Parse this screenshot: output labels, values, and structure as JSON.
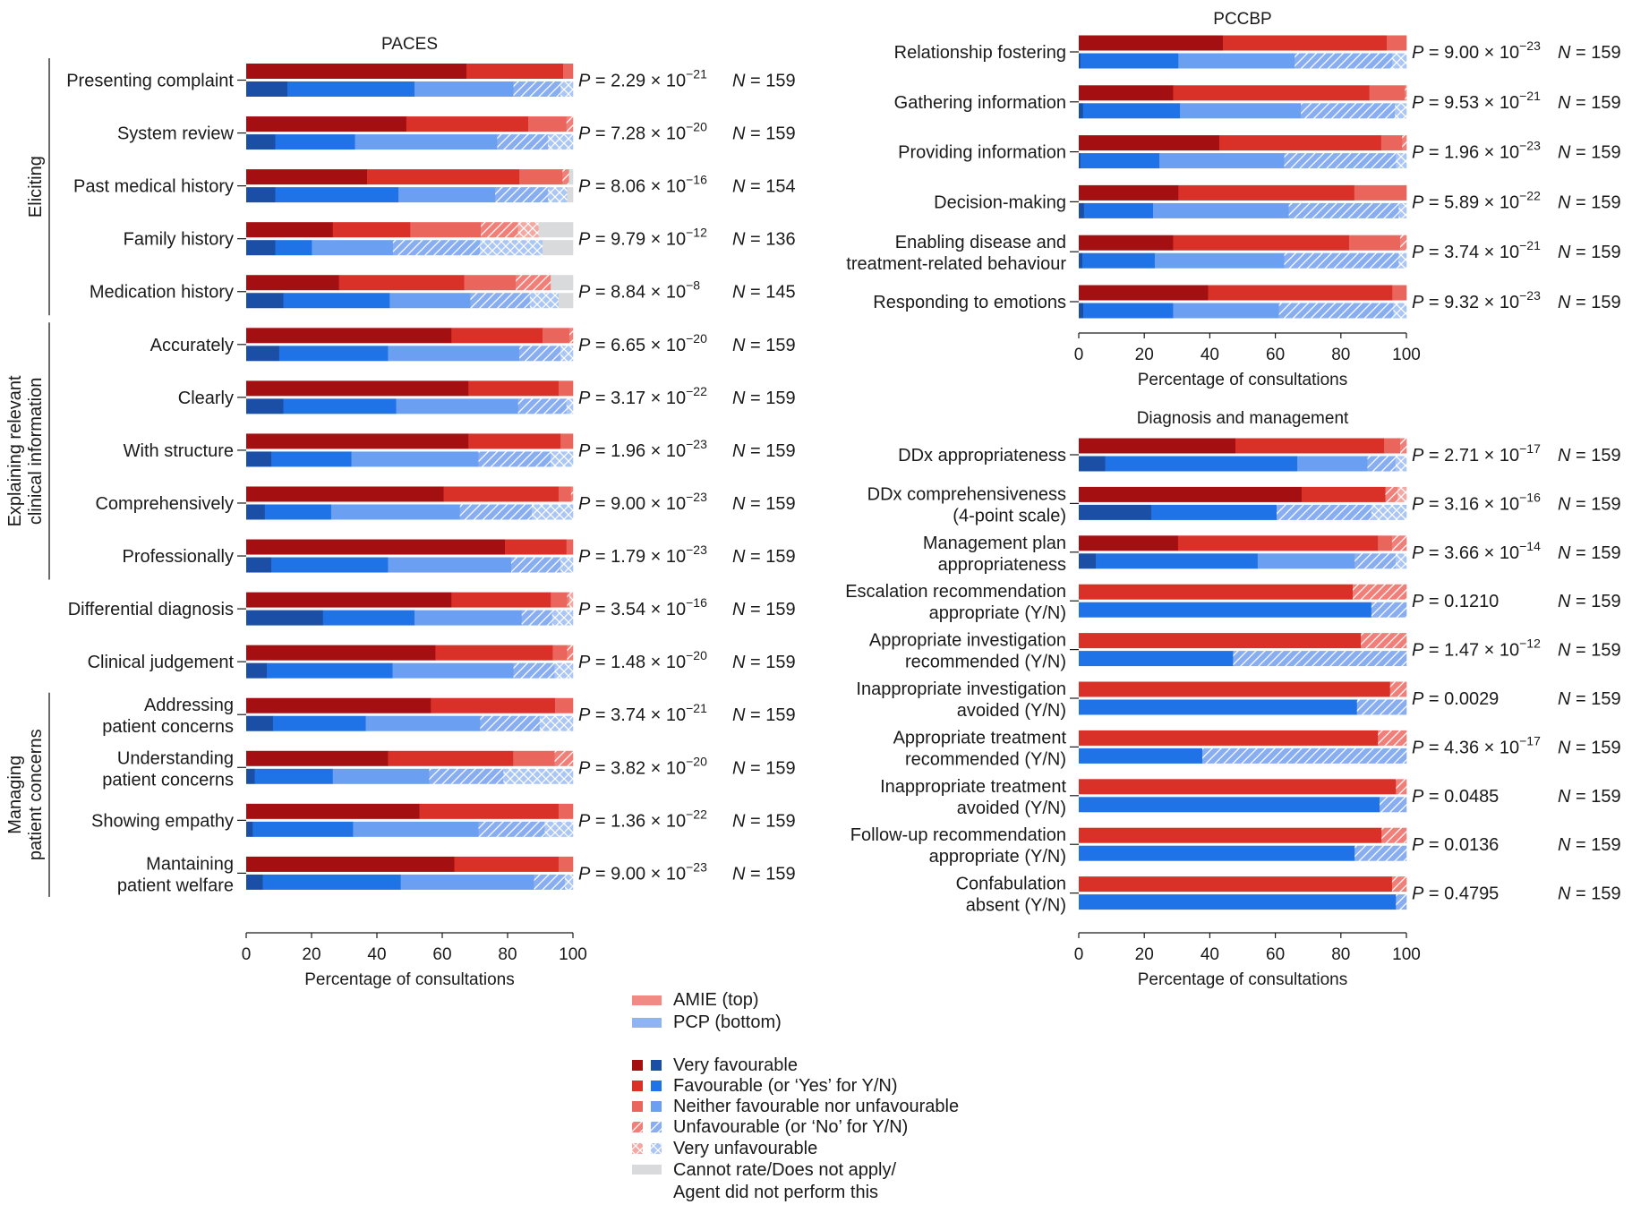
{
  "chart_data": {
    "type": "bar",
    "orientation": "horizontal-stacked",
    "legend": {
      "placement": "bottom-center",
      "groups": [
        {
          "label": "AMIE (top)",
          "color": "#f08a82"
        },
        {
          "label": "PCP (bottom)",
          "color": "#8fb4f2"
        }
      ],
      "categories": [
        {
          "key": "vf",
          "label": "Very favourable",
          "amie_color": "#a40f12",
          "pcp_color": "#1b4fa5",
          "pattern": "solid"
        },
        {
          "key": "f",
          "label": "Favourable (or ‘Yes’ for Y/N)",
          "amie_color": "#d93027",
          "pcp_color": "#1f73e6",
          "pattern": "solid"
        },
        {
          "key": "n",
          "label": "Neither favourable nor unfavourable",
          "amie_color": "#ea655c",
          "pcp_color": "#6a9ff2",
          "pattern": "solid"
        },
        {
          "key": "u",
          "label": "Unfavourable (or ‘No’ for Y/N)",
          "amie_color": "#ef8079",
          "pcp_color": "#88aef0",
          "pattern": "hatch"
        },
        {
          "key": "vu",
          "label": "Very unfavourable",
          "amie_color": "#f4a8a2",
          "pcp_color": "#aac6f5",
          "pattern": "crosshatch"
        },
        {
          "key": "cr",
          "label": "Cannot rate/Does not apply/",
          "label2": "Agent did not perform this",
          "amie_color": "#d9dadc",
          "pcp_color": "#d9dadc",
          "pattern": "solid"
        }
      ]
    },
    "xlabel": "Percentage of consultations",
    "xlim": [
      0,
      100
    ],
    "xticks": [
      "0",
      "20",
      "40",
      "60",
      "80",
      "100"
    ],
    "panels": [
      {
        "title": "PACES",
        "groups": [
          {
            "label": "Eliciting",
            "rows": [
              0,
              4
            ]
          },
          {
            "label": "Explaining relevant",
            "label2": "clinical information",
            "rows": [
              5,
              9
            ]
          },
          {
            "label": "Managing",
            "label2": "patient concerns",
            "rows": [
              12,
              15
            ]
          }
        ],
        "rows": [
          {
            "label": "Presenting complaint",
            "p": "2.29",
            "exp": "−21",
            "n": "159",
            "amie": [
              67.4,
              29.6,
              3.0,
              0,
              0,
              0
            ],
            "pcp": [
              12.6,
              38.9,
              30.3,
              14.4,
              3.8,
              0
            ]
          },
          {
            "label": "System review",
            "p": "7.28",
            "exp": "−20",
            "n": "159",
            "amie": [
              49.0,
              37.3,
              11.7,
              2.0,
              0,
              0
            ],
            "pcp": [
              8.9,
              24.4,
              43.5,
              15.5,
              7.7,
              0
            ]
          },
          {
            "label": "Past medical history",
            "p": "8.06",
            "exp": "−16",
            "n": "154",
            "amie": [
              37.0,
              46.6,
              13.2,
              2.0,
              0,
              1.2
            ],
            "pcp": [
              8.9,
              37.7,
              29.6,
              16.1,
              5.9,
              1.8
            ]
          },
          {
            "label": "Family history",
            "p": "9.79",
            "exp": "−12",
            "n": "136",
            "amie": [
              26.5,
              23.7,
              21.6,
              11.4,
              6.3,
              10.5
            ],
            "pcp": [
              8.9,
              11.2,
              24.8,
              26.6,
              19.2,
              9.3
            ]
          },
          {
            "label": "Medication history",
            "p": "8.84",
            "exp": "−8",
            "n": "145",
            "amie": [
              28.4,
              38.3,
              15.8,
              10.7,
              0,
              6.8
            ],
            "pcp": [
              11.4,
              32.5,
              24.7,
              18.2,
              8.8,
              4.4
            ]
          },
          {
            "label": "Accurately",
            "p": "6.65",
            "exp": "−20",
            "n": "159",
            "amie": [
              62.8,
              27.9,
              8.2,
              1.1,
              0,
              0
            ],
            "pcp": [
              10.1,
              33.3,
              40.2,
              12.6,
              3.8,
              0
            ]
          },
          {
            "label": "Clearly",
            "p": "3.17",
            "exp": "−22",
            "n": "159",
            "amie": [
              68.0,
              27.6,
              4.4,
              0,
              0,
              0
            ],
            "pcp": [
              11.4,
              34.5,
              37.3,
              14.8,
              2.0,
              0
            ]
          },
          {
            "label": "With structure",
            "p": "1.96",
            "exp": "−23",
            "n": "159",
            "amie": [
              68.0,
              28.2,
              3.8,
              0,
              0,
              0
            ],
            "pcp": [
              7.7,
              24.5,
              38.9,
              22.1,
              6.8,
              0
            ]
          },
          {
            "label": "Comprehensively",
            "p": "9.00",
            "exp": "−23",
            "n": "159",
            "amie": [
              60.4,
              35.2,
              3.8,
              0.6,
              0,
              0
            ],
            "pcp": [
              5.7,
              20.3,
              39.4,
              22.0,
              12.6,
              0
            ]
          },
          {
            "label": "Professionally",
            "p": "1.79",
            "exp": "−23",
            "n": "159",
            "amie": [
              79.2,
              18.8,
              2.0,
              0,
              0,
              0
            ],
            "pcp": [
              7.7,
              35.7,
              37.7,
              15.1,
              3.8,
              0
            ]
          },
          {
            "label": "Differential diagnosis",
            "p": "3.54",
            "exp": "−16",
            "n": "159",
            "amie": [
              62.8,
              30.4,
              5.0,
              0.7,
              1.1,
              0
            ],
            "pcp": [
              23.5,
              28.0,
              32.8,
              9.3,
              6.4,
              0
            ]
          },
          {
            "label": "Clinical judgement",
            "p": "1.48",
            "exp": "−20",
            "n": "159",
            "amie": [
              57.9,
              35.9,
              4.4,
              1.8,
              0,
              0
            ],
            "pcp": [
              6.3,
              38.5,
              37.0,
              12.6,
              5.6,
              0
            ]
          },
          {
            "label": "Addressing",
            "label2": "patient concerns",
            "p": "3.74",
            "exp": "−21",
            "n": "159",
            "amie": [
              56.5,
              38.0,
              5.5,
              0,
              0,
              0
            ],
            "pcp": [
              8.2,
              28.4,
              35.0,
              18.2,
              10.2,
              0
            ]
          },
          {
            "label": "Understanding",
            "label2": "patient concerns",
            "p": "3.82",
            "exp": "−20",
            "n": "159",
            "amie": [
              43.4,
              38.3,
              12.7,
              5.6,
              0,
              0
            ],
            "pcp": [
              2.6,
              23.9,
              29.5,
              22.7,
              21.3,
              0
            ]
          },
          {
            "label": "Showing empathy",
            "p": "1.36",
            "exp": "−22",
            "n": "159",
            "amie": [
              53.0,
              42.6,
              4.4,
              0,
              0,
              0
            ],
            "pcp": [
              2.0,
              30.7,
              38.4,
              20.3,
              8.6,
              0
            ]
          },
          {
            "label": "Mantaining",
            "label2": "patient welfare",
            "p": "9.00",
            "exp": "−23",
            "n": "159",
            "amie": [
              63.7,
              31.9,
              4.4,
              0,
              0,
              0
            ],
            "pcp": [
              5.1,
              42.2,
              40.8,
              9.4,
              2.5,
              0
            ]
          }
        ]
      },
      {
        "title": "PCCBP",
        "rows": [
          {
            "label": "Relationship fostering",
            "p": "9.00",
            "exp": "−23",
            "n": "159",
            "amie": [
              44.0,
              50.0,
              6.0,
              0,
              0,
              0
            ],
            "pcp": [
              0.5,
              29.9,
              35.5,
              29.8,
              4.3,
              0
            ]
          },
          {
            "label": "Gathering information",
            "p": "9.53",
            "exp": "−21",
            "n": "159",
            "amie": [
              28.8,
              59.9,
              10.8,
              0.5,
              0,
              0
            ],
            "pcp": [
              1.3,
              29.6,
              36.9,
              28.7,
              3.5,
              0
            ]
          },
          {
            "label": "Providing information",
            "p": "1.96",
            "exp": "−23",
            "n": "159",
            "amie": [
              42.9,
              49.4,
              6.4,
              1.3,
              0,
              0
            ],
            "pcp": [
              0.5,
              24.1,
              38.1,
              34.1,
              3.2,
              0
            ]
          },
          {
            "label": "Decision-making",
            "p": "5.89",
            "exp": "−22",
            "n": "159",
            "amie": [
              30.4,
              53.7,
              15.9,
              0,
              0,
              0
            ],
            "pcp": [
              1.6,
              21.1,
              41.4,
              33.5,
              2.4,
              0
            ]
          },
          {
            "label": "Enabling disease and",
            "label2": "treatment-related behaviour",
            "p": "3.74",
            "exp": "−21",
            "n": "159",
            "amie": [
              28.8,
              53.7,
              15.6,
              1.9,
              0,
              0
            ],
            "pcp": [
              1.1,
              22.1,
              39.5,
              34.9,
              2.4,
              0
            ]
          },
          {
            "label": "Responding to emotions",
            "p": "9.32",
            "exp": "−23",
            "n": "159",
            "amie": [
              39.5,
              56.2,
              4.3,
              0,
              0,
              0
            ],
            "pcp": [
              1.4,
              27.4,
              32.3,
              34.9,
              4.0,
              0
            ]
          }
        ]
      },
      {
        "title": "Diagnosis and management",
        "rows": [
          {
            "label": "DDx appropriateness",
            "p": "2.71",
            "exp": "−17",
            "n": "159",
            "amie": [
              47.8,
              45.4,
              4.9,
              1.9,
              0,
              0
            ],
            "pcp": [
              8.1,
              58.6,
              21.4,
              8.6,
              3.3,
              0
            ]
          },
          {
            "label": "DDx comprehensiveness",
            "label2": "(4-point scale)",
            "p": "3.16",
            "exp": "−16",
            "n": "159",
            "amie": [
              68.0,
              25.6,
              0,
              3.7,
              2.7,
              0
            ],
            "pcp": [
              22.1,
              38.3,
              0,
              28.9,
              10.7,
              0
            ]
          },
          {
            "label": "Management plan",
            "label2": "appropriateness",
            "p": "3.66",
            "exp": "−14",
            "n": "159",
            "amie": [
              30.3,
              61.0,
              4.3,
              4.4,
              0,
              0
            ],
            "pcp": [
              5.2,
              49.4,
              29.6,
              12.5,
              3.3,
              0
            ]
          },
          {
            "label": "Escalation recommendation",
            "label2": "appropriate (Y/N)",
            "p": "0.1210",
            "exp": "",
            "n": "159",
            "amie": [
              0,
              83.6,
              0,
              16.4,
              0,
              0
            ],
            "pcp": [
              0,
              89.3,
              0,
              10.7,
              0,
              0
            ]
          },
          {
            "label": "Appropriate investigation",
            "label2": "recommended (Y/N)",
            "p": "1.47",
            "exp": "−12",
            "n": "159",
            "amie": [
              0,
              86.1,
              0,
              13.9,
              0,
              0
            ],
            "pcp": [
              0,
              47.1,
              0,
              52.9,
              0,
              0
            ]
          },
          {
            "label": "Inappropriate investigation",
            "label2": "avoided (Y/N)",
            "p": "0.0029",
            "exp": "",
            "n": "159",
            "amie": [
              0,
              95.0,
              0,
              5.0,
              0,
              0
            ],
            "pcp": [
              0,
              84.9,
              0,
              15.1,
              0,
              0
            ]
          },
          {
            "label": "Appropriate treatment",
            "label2": "recommended (Y/N)",
            "p": "4.36",
            "exp": "−17",
            "n": "159",
            "amie": [
              0,
              91.3,
              0,
              8.7,
              0,
              0
            ],
            "pcp": [
              0,
              37.7,
              0,
              62.3,
              0,
              0
            ]
          },
          {
            "label": "Inappropriate treatment",
            "label2": "avoided (Y/N)",
            "p": "0.0485",
            "exp": "",
            "n": "159",
            "amie": [
              0,
              96.8,
              0,
              3.2,
              0,
              0
            ],
            "pcp": [
              0,
              91.8,
              0,
              8.2,
              0,
              0
            ]
          },
          {
            "label": "Follow-up recommendation",
            "label2": "appropriate (Y/N)",
            "p": "0.0136",
            "exp": "",
            "n": "159",
            "amie": [
              0,
              92.4,
              0,
              7.6,
              0,
              0
            ],
            "pcp": [
              0,
              84.2,
              0,
              15.8,
              0,
              0
            ]
          },
          {
            "label": "Confabulation",
            "label2": "absent (Y/N)",
            "p": "0.4795",
            "exp": "",
            "n": "159",
            "amie": [
              0,
              95.6,
              0,
              4.4,
              0,
              0
            ],
            "pcp": [
              0,
              96.8,
              0,
              3.2,
              0,
              0
            ]
          }
        ]
      }
    ]
  }
}
